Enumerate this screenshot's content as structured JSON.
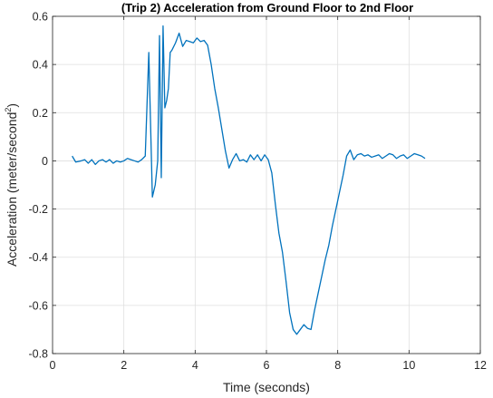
{
  "chart_data": {
    "type": "line",
    "title": "(Trip 2) Acceleration from Ground Floor to 2nd Floor",
    "xlabel": "Time (seconds)",
    "ylabel": {
      "prefix": "Acceleration (meter/second",
      "superscript": "2",
      "suffix": ")"
    },
    "xlim": [
      0,
      12
    ],
    "ylim": [
      -0.8,
      0.6
    ],
    "xticks": [
      0,
      2,
      4,
      6,
      8,
      10,
      12
    ],
    "yticks": [
      0.6,
      0.4,
      0.2,
      0,
      -0.2,
      -0.4,
      -0.6,
      -0.8
    ],
    "xtick_labels": [
      "0",
      "2",
      "4",
      "6",
      "8",
      "10",
      "12"
    ],
    "ytick_labels": [
      "0.6",
      "0.4",
      "0.2",
      "0",
      "-0.2",
      "-0.4",
      "-0.6",
      "-0.8"
    ],
    "grid": true,
    "legend": false,
    "series": [
      {
        "color": "#0072bd",
        "x": [
          0.55,
          0.65,
          0.8,
          0.9,
          1.0,
          1.1,
          1.2,
          1.3,
          1.4,
          1.5,
          1.6,
          1.7,
          1.8,
          1.9,
          2.0,
          2.1,
          2.2,
          2.3,
          2.4,
          2.5,
          2.6,
          2.7,
          2.8,
          2.88,
          2.95,
          3.0,
          3.05,
          3.1,
          3.15,
          3.2,
          3.25,
          3.3,
          3.35,
          3.45,
          3.55,
          3.65,
          3.75,
          3.85,
          3.95,
          4.05,
          4.15,
          4.25,
          4.35,
          4.45,
          4.55,
          4.65,
          4.75,
          4.85,
          4.95,
          5.05,
          5.15,
          5.25,
          5.35,
          5.45,
          5.55,
          5.65,
          5.75,
          5.85,
          5.95,
          6.05,
          6.15,
          6.25,
          6.35,
          6.45,
          6.55,
          6.65,
          6.75,
          6.85,
          6.95,
          7.05,
          7.15,
          7.25,
          7.35,
          7.45,
          7.55,
          7.65,
          7.75,
          7.85,
          7.95,
          8.05,
          8.15,
          8.25,
          8.35,
          8.45,
          8.55,
          8.65,
          8.75,
          8.85,
          8.95,
          9.05,
          9.15,
          9.25,
          9.35,
          9.45,
          9.55,
          9.65,
          9.75,
          9.85,
          9.95,
          10.05,
          10.15,
          10.25,
          10.35,
          10.45
        ],
        "y": [
          0.02,
          -0.005,
          0.0,
          0.005,
          -0.01,
          0.005,
          -0.015,
          0.0,
          0.005,
          -0.005,
          0.005,
          -0.01,
          0.0,
          -0.005,
          0.0,
          0.01,
          0.005,
          0.0,
          -0.005,
          0.005,
          0.02,
          0.45,
          -0.15,
          -0.1,
          0.0,
          0.52,
          -0.07,
          0.56,
          0.22,
          0.25,
          0.3,
          0.45,
          0.46,
          0.49,
          0.53,
          0.475,
          0.5,
          0.495,
          0.49,
          0.51,
          0.495,
          0.5,
          0.48,
          0.4,
          0.3,
          0.22,
          0.13,
          0.04,
          -0.03,
          0.005,
          0.03,
          0.0,
          0.005,
          -0.005,
          0.025,
          0.005,
          0.025,
          0.0,
          0.025,
          0.005,
          -0.05,
          -0.18,
          -0.3,
          -0.38,
          -0.5,
          -0.63,
          -0.7,
          -0.72,
          -0.7,
          -0.68,
          -0.695,
          -0.7,
          -0.62,
          -0.55,
          -0.48,
          -0.41,
          -0.35,
          -0.27,
          -0.2,
          -0.13,
          -0.06,
          0.02,
          0.045,
          0.005,
          0.025,
          0.03,
          0.02,
          0.025,
          0.015,
          0.02,
          0.025,
          0.01,
          0.02,
          0.03,
          0.025,
          0.01,
          0.02,
          0.025,
          0.01,
          0.02,
          0.03,
          0.025,
          0.02,
          0.01
        ]
      }
    ]
  }
}
